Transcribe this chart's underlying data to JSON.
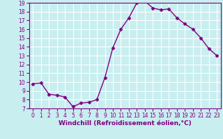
{
  "x": [
    0,
    1,
    2,
    3,
    4,
    5,
    6,
    7,
    8,
    9,
    10,
    11,
    12,
    13,
    14,
    15,
    16,
    17,
    18,
    19,
    20,
    21,
    22,
    23
  ],
  "y": [
    9.8,
    9.9,
    8.6,
    8.5,
    8.3,
    7.2,
    7.6,
    7.7,
    8.0,
    10.5,
    13.9,
    16.0,
    17.3,
    19.0,
    19.2,
    18.4,
    18.2,
    18.3,
    17.3,
    16.6,
    16.0,
    15.0,
    13.8,
    13.0
  ],
  "line_color": "#800080",
  "marker": "D",
  "marker_size": 2.5,
  "bg_color": "#c8eef0",
  "grid_color": "#ffffff",
  "xlabel": "Windchill (Refroidissement éolien,°C)",
  "ylim": [
    7,
    19
  ],
  "xlim": [
    -0.5,
    23.5
  ],
  "yticks": [
    7,
    8,
    9,
    10,
    11,
    12,
    13,
    14,
    15,
    16,
    17,
    18,
    19
  ],
  "xtick_labels": [
    "0",
    "1",
    "2",
    "3",
    "4",
    "5",
    "6",
    "7",
    "8",
    "9",
    "10",
    "11",
    "12",
    "13",
    "14",
    "15",
    "16",
    "17",
    "18",
    "19",
    "20",
    "21",
    "22",
    "23"
  ],
  "xlabel_fontsize": 6.5,
  "tick_fontsize": 5.5,
  "line_width": 1.0,
  "spine_color": "#800080"
}
